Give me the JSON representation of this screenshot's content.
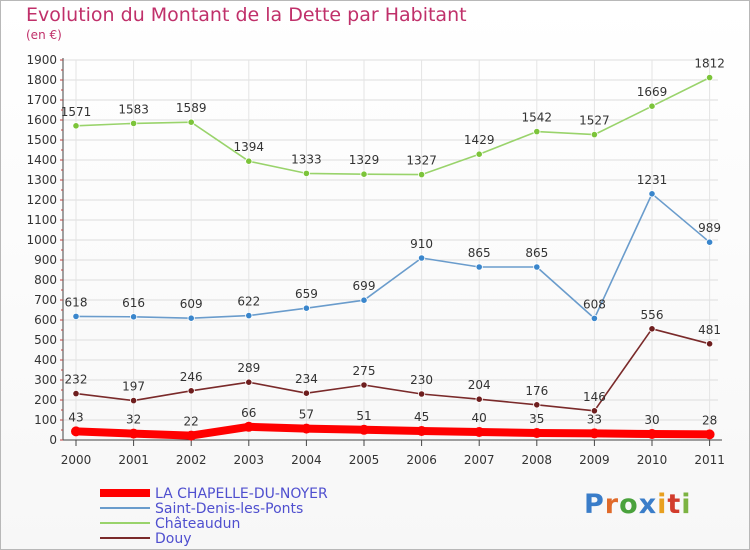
{
  "header": {
    "title": "Evolution du Montant de la Dette par Habitant",
    "subtitle": "(en €)"
  },
  "logo": {
    "text": "Proxiti",
    "colors": [
      "#3a7dc9",
      "#e06a2a",
      "#4aa23c",
      "#3a7dc9",
      "#e8a020",
      "#d23c2c",
      "#7cb342"
    ]
  },
  "chart_data": {
    "type": "line",
    "x": [
      "2000",
      "2001",
      "2002",
      "2003",
      "2004",
      "2005",
      "2006",
      "2007",
      "2008",
      "2009",
      "2010",
      "2011"
    ],
    "ylim": [
      0,
      1900
    ],
    "yticks": [
      0,
      100,
      200,
      300,
      400,
      500,
      600,
      700,
      800,
      900,
      1000,
      1100,
      1200,
      1300,
      1400,
      1500,
      1600,
      1700,
      1800,
      1900
    ],
    "grid": true,
    "legend_position": "bottom-left",
    "series": [
      {
        "name": "LA CHAPELLE-DU-NOYER",
        "values": [
          43,
          32,
          22,
          66,
          57,
          51,
          45,
          40,
          35,
          33,
          30,
          28
        ],
        "color": "#ff0000",
        "marker_color": "#ff0000",
        "legend_color": "#4f4fcf",
        "thick": true
      },
      {
        "name": "Saint-Denis-les-Ponts",
        "values": [
          618,
          616,
          609,
          622,
          659,
          699,
          910,
          865,
          865,
          608,
          1231,
          989
        ],
        "color": "#6a9ccc",
        "marker_color": "#3a86cc",
        "legend_color": "#4f4fcf",
        "thick": false
      },
      {
        "name": "Châteaudun",
        "values": [
          1571,
          1583,
          1589,
          1394,
          1333,
          1329,
          1327,
          1429,
          1542,
          1527,
          1669,
          1812
        ],
        "color": "#99d36b",
        "marker_color": "#7cc43a",
        "legend_color": "#4f4fcf",
        "thick": false
      },
      {
        "name": "Douy",
        "values": [
          232,
          197,
          246,
          289,
          234,
          275,
          230,
          204,
          176,
          146,
          556,
          481
        ],
        "color": "#7a2a2a",
        "marker_color": "#6e1e1e",
        "legend_color": "#4f4fcf",
        "thick": false
      }
    ]
  }
}
